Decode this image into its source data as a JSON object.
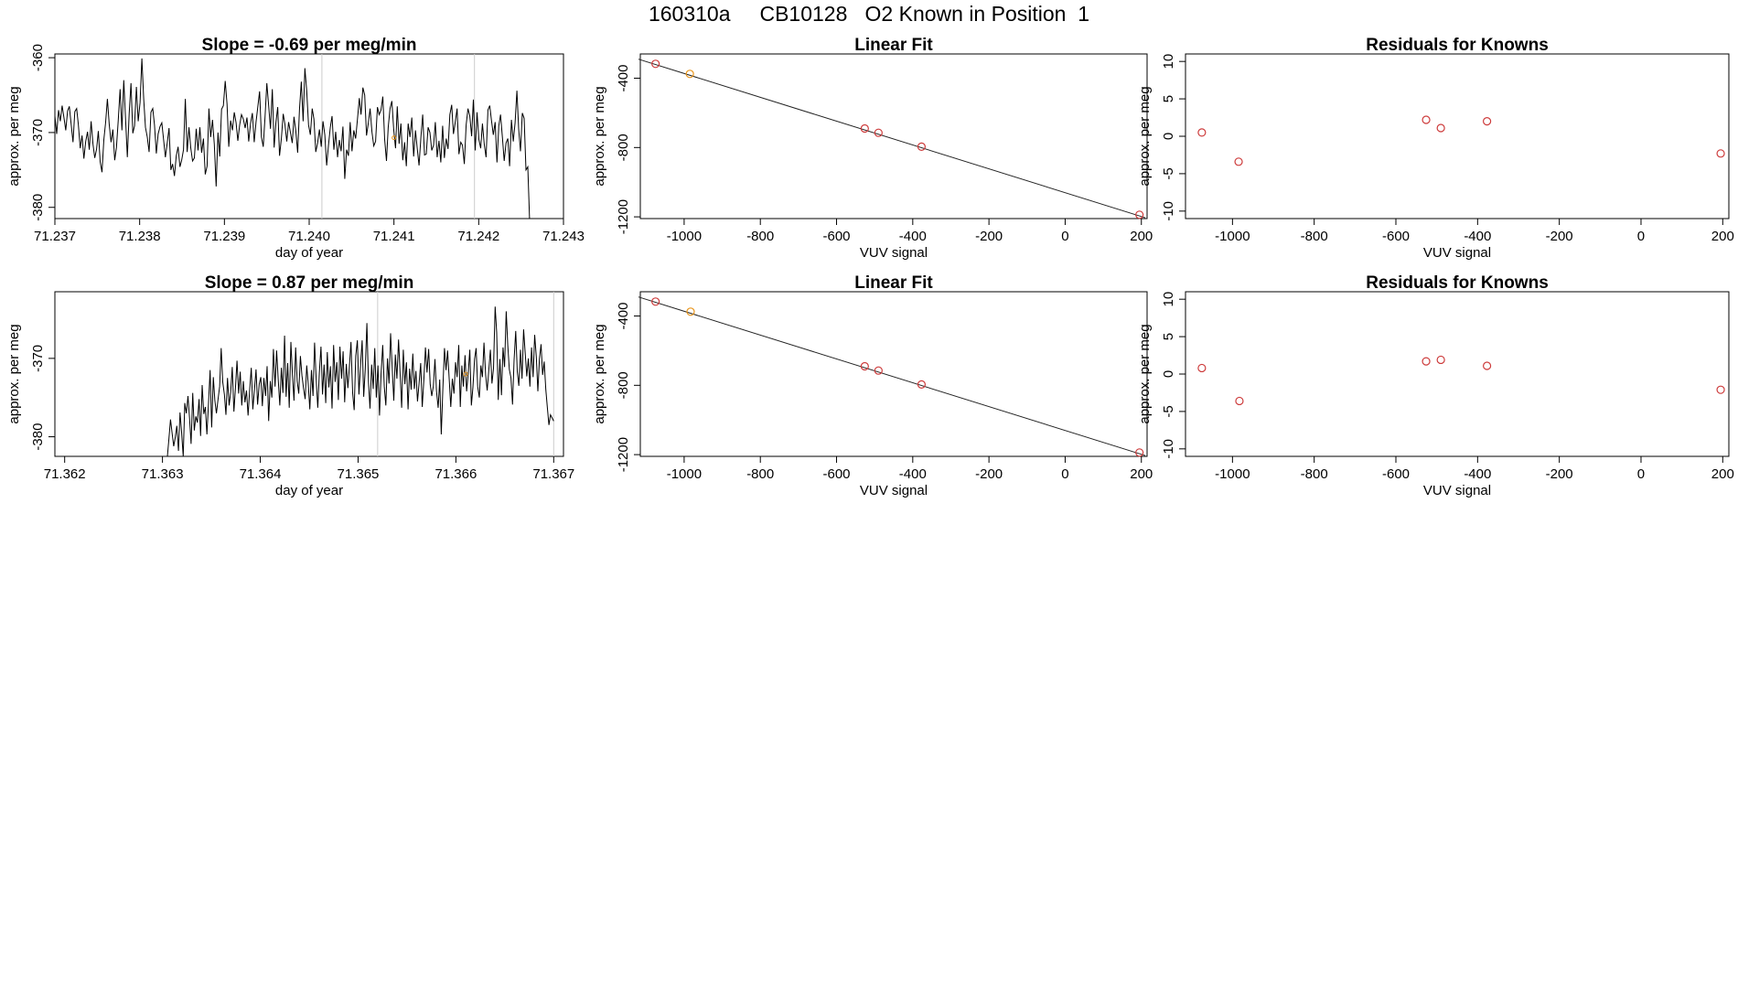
{
  "figure": {
    "title": "160310a     CB10128   O2 Known in Position  1"
  },
  "colors": {
    "line": "#000000",
    "known": "#cd3b3b",
    "highlight": "#e8941a",
    "marker_line": "#cccccc"
  },
  "chart_data": [
    {
      "id": "ts1",
      "type": "line",
      "title": "Slope =  -0.69  per meg/min",
      "xlabel": "day of year",
      "ylabel": "approx. per meg",
      "xlim": [
        71.237,
        71.243
      ],
      "ylim": [
        -381.5,
        -359.5
      ],
      "xticks": [
        "71.237",
        "71.238",
        "71.239",
        "71.240",
        "71.241",
        "71.242",
        "71.243"
      ],
      "yticks": [
        "-360",
        "-370",
        "-380"
      ],
      "vlines": [
        71.24015,
        71.24195
      ],
      "highlight_point": {
        "x": 71.241,
        "y": -370.7
      },
      "series": [
        {
          "x_start": 71.237,
          "x_end": 71.2426,
          "y": [
            -367.8,
            -370.2,
            -367.0,
            -368.5,
            -366.4,
            -368.0,
            -369.7,
            -367.1,
            -366.5,
            -368.9,
            -371.3,
            -367.2,
            -366.8,
            -369.0,
            -372.1,
            -370.4,
            -373.5,
            -371.2,
            -369.9,
            -372.3,
            -368.5,
            -371.5,
            -373.4,
            -372.2,
            -369.8,
            -373.9,
            -375.3,
            -371.0,
            -368.6,
            -365.5,
            -368.9,
            -371.3,
            -369.6,
            -373.7,
            -372.0,
            -368.3,
            -364.2,
            -369.7,
            -363.0,
            -368.0,
            -373.3,
            -367.5,
            -363.4,
            -370.1,
            -369.1,
            -363.9,
            -368.5,
            -366.0,
            -360.1,
            -365.5,
            -369.3,
            -370.6,
            -372.6,
            -367.3,
            -366.8,
            -369.0,
            -372.8,
            -370.2,
            -369.2,
            -368.7,
            -370.9,
            -373.3,
            -371.4,
            -369.4,
            -375.0,
            -374.2,
            -375.8,
            -373.1,
            -371.9,
            -374.6,
            -373.7,
            -372.3,
            -365.5,
            -372.6,
            -369.3,
            -372.0,
            -373.8,
            -373.4,
            -369.5,
            -372.4,
            -369.3,
            -372.7,
            -370.8,
            -375.6,
            -374.5,
            -366.8,
            -370.6,
            -368.3,
            -371.6,
            -377.2,
            -370.0,
            -373.2,
            -366.9,
            -366.4,
            -363.1,
            -366.2,
            -371.9,
            -368.4,
            -369.7,
            -367.3,
            -368.7,
            -371.1,
            -369.0,
            -367.6,
            -368.2,
            -369.4,
            -368.0,
            -371.2,
            -368.8,
            -367.4,
            -371.3,
            -368.6,
            -366.6,
            -364.5,
            -370.6,
            -371.9,
            -367.8,
            -363.4,
            -366.4,
            -369.5,
            -364.2,
            -372.0,
            -368.7,
            -366.6,
            -373.1,
            -370.8,
            -367.5,
            -368.9,
            -371.2,
            -368.6,
            -370.0,
            -371.4,
            -367.9,
            -369.8,
            -372.7,
            -366.9,
            -363.2,
            -368.5,
            -361.4,
            -364.4,
            -369.0,
            -370.3,
            -366.8,
            -368.2,
            -372.6,
            -371.4,
            -369.6,
            -371.9,
            -368.5,
            -370.3,
            -374.4,
            -371.7,
            -369.3,
            -367.8,
            -372.3,
            -369.9,
            -373.3,
            -371.0,
            -372.5,
            -369.2,
            -376.2,
            -372.3,
            -373.1,
            -368.6,
            -372.5,
            -369.7,
            -370.8,
            -368.2,
            -365.4,
            -367.6,
            -364.0,
            -365.0,
            -370.4,
            -368.7,
            -366.8,
            -369.9,
            -371.8,
            -371.2,
            -366.6,
            -367.6,
            -367.0,
            -365.2,
            -370.9,
            -373.8,
            -369.3,
            -366.8,
            -365.8,
            -369.6,
            -372.1,
            -366.5,
            -371.5,
            -368.8,
            -373.7,
            -371.3,
            -374.5,
            -368.8,
            -370.6,
            -368.0,
            -373.2,
            -369.7,
            -372.1,
            -374.4,
            -370.7,
            -367.6,
            -373.0,
            -372.9,
            -369.3,
            -370.0,
            -372.4,
            -371.7,
            -368.6,
            -373.3,
            -371.1,
            -374.0,
            -369.1,
            -373.4,
            -370.8,
            -372.2,
            -367.6,
            -366.3,
            -370.2,
            -368.6,
            -366.8,
            -372.9,
            -371.3,
            -371.7,
            -374.2,
            -369.0,
            -366.8,
            -367.8,
            -370.5,
            -365.6,
            -372.4,
            -367.3,
            -370.9,
            -372.1,
            -368.8,
            -371.6,
            -373.3,
            -367.0,
            -366.4,
            -368.4,
            -370.3,
            -368.6,
            -374.0,
            -369.1,
            -367.6,
            -370.6,
            -373.8,
            -371.4,
            -370.8,
            -374.5,
            -368.3,
            -371.2,
            -368.7,
            -364.4,
            -369.5,
            -372.5,
            -367.4,
            -368.1,
            -375.0,
            -374.6,
            -381.5
          ]
        }
      ]
    },
    {
      "id": "fit1",
      "type": "scatter",
      "title": "Linear Fit",
      "xlabel": "VUV signal",
      "ylabel": "approx. per meg",
      "xlim": [
        -1115,
        215
      ],
      "ylim": [
        -1210,
        -260
      ],
      "xticks": [
        -1000,
        -800,
        -600,
        -400,
        -200,
        0,
        200
      ],
      "yticks": [
        -400,
        -800,
        -1200
      ],
      "fit_line": {
        "from": [
          -1120,
          -290
        ],
        "to": [
          210,
          -1205
        ]
      },
      "points": [
        {
          "x": -1075,
          "y": -317,
          "color": "known"
        },
        {
          "x": -985,
          "y": -375,
          "color": "highlight"
        },
        {
          "x": -526,
          "y": -690,
          "color": "known"
        },
        {
          "x": -490,
          "y": -715,
          "color": "known"
        },
        {
          "x": -377,
          "y": -795,
          "color": "known"
        },
        {
          "x": 195,
          "y": -1188,
          "color": "known"
        }
      ]
    },
    {
      "id": "res1",
      "type": "scatter",
      "title": "Residuals for Knowns",
      "xlabel": "VUV signal",
      "ylabel": "approx. per meg",
      "xlim": [
        -1115,
        215
      ],
      "ylim": [
        -11,
        11
      ],
      "xticks": [
        -1000,
        -800,
        -600,
        -400,
        -200,
        0,
        200
      ],
      "yticks": [
        10,
        5,
        0,
        -5,
        -10
      ],
      "points": [
        {
          "x": -1075,
          "y": 0.5,
          "color": "known"
        },
        {
          "x": -985,
          "y": -3.4,
          "color": "known"
        },
        {
          "x": -526,
          "y": 2.2,
          "color": "known"
        },
        {
          "x": -490,
          "y": 1.1,
          "color": "known"
        },
        {
          "x": -377,
          "y": 2.0,
          "color": "known"
        },
        {
          "x": 195,
          "y": -2.3,
          "color": "known"
        }
      ]
    },
    {
      "id": "ts2",
      "type": "line",
      "title": "Slope =  0.87  per meg/min",
      "xlabel": "day of year",
      "ylabel": "approx. per meg",
      "xlim": [
        71.3619,
        71.3671
      ],
      "ylim": [
        -382.5,
        -361.5
      ],
      "xticks": [
        "71.362",
        "71.363",
        "71.364",
        "71.365",
        "71.366",
        "71.367"
      ],
      "yticks": [
        "-370",
        "-380"
      ],
      "vlines": [
        71.3652,
        71.367
      ],
      "highlight_point": {
        "x": 71.3661,
        "y": -372.0
      },
      "series": [
        {
          "x_start": 71.36305,
          "x_end": 71.367,
          "y": [
            -382.5,
            -380.2,
            -377.8,
            -379.6,
            -381.2,
            -380.1,
            -378.6,
            -381.8,
            -376.9,
            -379.4,
            -382.5,
            -375.7,
            -377.0,
            -374.8,
            -377.6,
            -380.9,
            -374.4,
            -379.2,
            -377.4,
            -378.2,
            -375.2,
            -379.9,
            -373.4,
            -377.1,
            -376.2,
            -379.7,
            -375.6,
            -371.5,
            -378.8,
            -372.4,
            -375.4,
            -377.0,
            -375.2,
            -373.6,
            -368.7,
            -373.0,
            -374.6,
            -377.2,
            -372.5,
            -376.0,
            -374.3,
            -371.1,
            -376.8,
            -373.8,
            -370.3,
            -374.5,
            -371.7,
            -376.0,
            -372.9,
            -375.6,
            -374.1,
            -377.3,
            -373.9,
            -371.2,
            -376.5,
            -374.0,
            -371.4,
            -375.9,
            -373.3,
            -372.4,
            -376.1,
            -372.5,
            -374.8,
            -371.0,
            -378.0,
            -372.9,
            -375.0,
            -368.8,
            -373.6,
            -369.0,
            -372.6,
            -376.0,
            -371.2,
            -374.4,
            -367.1,
            -374.9,
            -370.6,
            -376.3,
            -367.9,
            -372.1,
            -375.4,
            -368.6,
            -372.9,
            -374.5,
            -369.7,
            -372.2,
            -373.8,
            -375.2,
            -370.9,
            -373.3,
            -376.5,
            -371.5,
            -374.8,
            -368.0,
            -372.8,
            -376.3,
            -371.9,
            -368.5,
            -374.6,
            -370.8,
            -375.7,
            -369.2,
            -373.7,
            -371.0,
            -376.4,
            -368.3,
            -373.0,
            -370.5,
            -375.3,
            -368.5,
            -372.6,
            -369.1,
            -375.6,
            -370.7,
            -373.8,
            -371.0,
            -367.9,
            -374.4,
            -376.6,
            -369.7,
            -367.7,
            -374.6,
            -371.0,
            -367.7,
            -374.9,
            -371.4,
            -365.5,
            -373.0,
            -376.4,
            -370.8,
            -373.9,
            -368.7,
            -375.0,
            -370.9,
            -377.3,
            -372.0,
            -368.3,
            -373.6,
            -376.0,
            -370.0,
            -373.2,
            -366.8,
            -371.3,
            -375.4,
            -369.5,
            -372.6,
            -367.6,
            -371.9,
            -376.3,
            -368.9,
            -373.3,
            -370.5,
            -376.5,
            -371.3,
            -374.0,
            -369.4,
            -373.9,
            -371.6,
            -375.5,
            -373.1,
            -370.6,
            -376.2,
            -372.7,
            -368.6,
            -371.8,
            -368.8,
            -373.3,
            -374.8,
            -373.5,
            -370.1,
            -374.2,
            -376.3,
            -372.7,
            -379.7,
            -374.0,
            -368.7,
            -371.5,
            -369.0,
            -372.7,
            -376.2,
            -372.6,
            -374.5,
            -370.5,
            -372.4,
            -368.3,
            -376.2,
            -370.9,
            -373.6,
            -369.6,
            -374.2,
            -372.0,
            -368.9,
            -376.0,
            -373.7,
            -370.1,
            -368.7,
            -373.6,
            -375.0,
            -370.9,
            -372.4,
            -368.0,
            -372.1,
            -374.1,
            -371.6,
            -368.9,
            -373.2,
            -371.3,
            -363.4,
            -366.7,
            -375.3,
            -370.1,
            -374.7,
            -368.6,
            -371.1,
            -364.0,
            -368.3,
            -371.4,
            -372.5,
            -375.9,
            -370.2,
            -366.5,
            -371.7,
            -373.5,
            -368.9,
            -372.6,
            -366.3,
            -369.4,
            -372.3,
            -370.0,
            -373.6,
            -368.6,
            -372.4,
            -367.0,
            -369.8,
            -374.2,
            -370.1,
            -368.2,
            -372.1,
            -370.4,
            -374.0,
            -376.3,
            -378.5,
            -377.2,
            -377.6,
            -378.0
          ]
        }
      ]
    },
    {
      "id": "fit2",
      "type": "scatter",
      "title": "Linear Fit",
      "xlabel": "VUV signal",
      "ylabel": "approx. per meg",
      "xlim": [
        -1115,
        215
      ],
      "ylim": [
        -1210,
        -260
      ],
      "xticks": [
        -1000,
        -800,
        -600,
        -400,
        -200,
        0,
        200
      ],
      "yticks": [
        -400,
        -800,
        -1200
      ],
      "fit_line": {
        "from": [
          -1120,
          -290
        ],
        "to": [
          210,
          -1205
        ]
      },
      "points": [
        {
          "x": -1075,
          "y": -317,
          "color": "known"
        },
        {
          "x": -983,
          "y": -375,
          "color": "highlight"
        },
        {
          "x": -526,
          "y": -690,
          "color": "known"
        },
        {
          "x": -490,
          "y": -715,
          "color": "known"
        },
        {
          "x": -377,
          "y": -795,
          "color": "known"
        },
        {
          "x": 195,
          "y": -1188,
          "color": "known"
        }
      ]
    },
    {
      "id": "res2",
      "type": "scatter",
      "title": "Residuals for Knowns",
      "xlabel": "VUV signal",
      "ylabel": "approx. per meg",
      "xlim": [
        -1115,
        215
      ],
      "ylim": [
        -11,
        11
      ],
      "xticks": [
        -1000,
        -800,
        -600,
        -400,
        -200,
        0,
        200
      ],
      "yticks": [
        10,
        5,
        0,
        -5,
        -10
      ],
      "points": [
        {
          "x": -1075,
          "y": 0.8,
          "color": "known"
        },
        {
          "x": -983,
          "y": -3.6,
          "color": "known"
        },
        {
          "x": -526,
          "y": 1.7,
          "color": "known"
        },
        {
          "x": -490,
          "y": 1.9,
          "color": "known"
        },
        {
          "x": -377,
          "y": 1.1,
          "color": "known"
        },
        {
          "x": 195,
          "y": -2.1,
          "color": "known"
        }
      ]
    }
  ]
}
